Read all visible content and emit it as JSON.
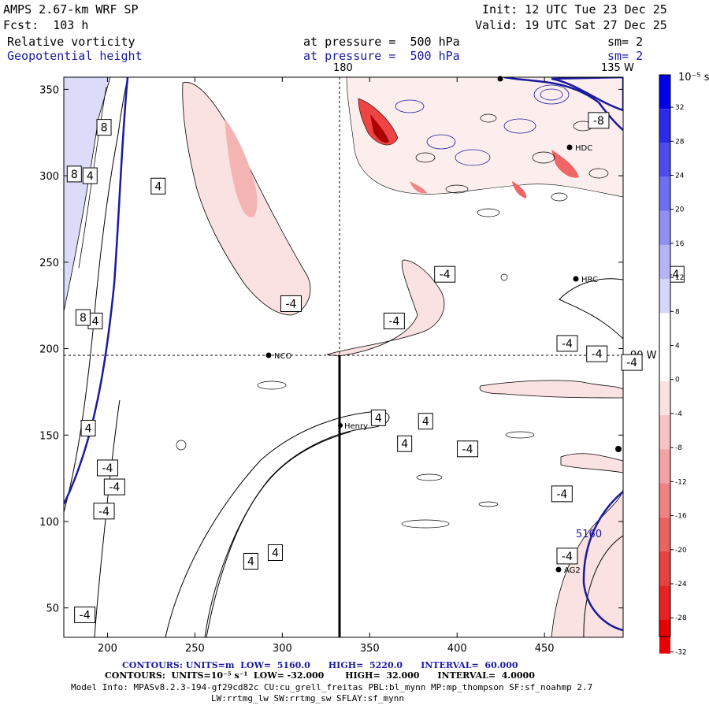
{
  "header": {
    "model": "AMPS 2.67-km WRF SP",
    "init": "Init: 12 UTC Tue 23 Dec 25",
    "fcst": "Fcst:  103 h",
    "valid": "Valid: 19 UTC Sat 27 Dec 25",
    "field1_name": "Relative vorticity",
    "field1_level": "at pressure =  500 hPa",
    "field1_sm": "sm= 2",
    "field2_name": "Geopotential height",
    "field2_level": "at pressure =  500 hPa",
    "field2_sm": "sm= 2"
  },
  "map_labels": {
    "lon_180": "180",
    "lon_135w": "135 W",
    "lon_90w": "90 W",
    "contour_5160": "5160",
    "stations": [
      "NCO",
      "Henry",
      "HDC",
      "HRC",
      "AG2"
    ]
  },
  "colorbar": {
    "unit": "10⁻⁵ s⁻¹",
    "ticks": [
      "32",
      "28",
      "24",
      "20",
      "16",
      "12",
      "8",
      "4",
      "0",
      "-4",
      "-8",
      "-12",
      "-16",
      "-20",
      "-24",
      "-28",
      "-32"
    ],
    "colors": [
      "#0000e8",
      "#2a2ae8",
      "#4c4cec",
      "#6e6ef0",
      "#9090f2",
      "#b4b4f6",
      "#d6d6fa",
      "#ffffff",
      "#ffffff",
      "#fbe2e2",
      "#f6c2c2",
      "#f2a2a2",
      "#ee8282",
      "#ea6262",
      "#e64242",
      "#e62222",
      "#e60000"
    ]
  },
  "footer": {
    "line1": "CONTOURS: UNITS=m  LOW=  5160.0      HIGH=  5220.0      INTERVAL=  60.000",
    "line2": "CONTOURS:  UNITS=10⁻⁵ s⁻¹  LOW= -32.000       HIGH=  32.000      INTERVAL=  4.0000",
    "line3": "Model Info: MPASv8.2.3-194-gf29cd82c CU:cu_grell_freitas PBL:bl_mynn MP:mp_thompson SF:sf_noahmp 2.7",
    "line4": "LW:rrtmg_lw SW:rrtmg_sw SFLAY:sf_mynn"
  },
  "chart_data": {
    "type": "contour-map",
    "title": "Relative vorticity / Geopotential height at 500 hPa",
    "x_ticks": [
      200,
      250,
      300,
      350,
      400,
      450
    ],
    "y_ticks": [
      50,
      100,
      150,
      200,
      250,
      300,
      350
    ],
    "xlim": [
      175,
      495
    ],
    "ylim": [
      33,
      357
    ],
    "vorticity_contour_labels": [
      "-4",
      "-4",
      "-4",
      "-4",
      "-4",
      "-4",
      "-4",
      "-4",
      "-4",
      "-4",
      "-4",
      "-4",
      "-4",
      "-4",
      "-4",
      "-4",
      "-8",
      "4",
      "4",
      "4",
      "4",
      "4",
      "4",
      "4",
      "4",
      "4",
      "8",
      "8",
      "8"
    ],
    "height_contour_labels": [
      "5160"
    ],
    "height_low": 5160.0,
    "height_high": 5220.0,
    "height_interval": 60.0,
    "vorticity_low": -32.0,
    "vorticity_high": 32.0,
    "vorticity_interval": 4.0
  }
}
